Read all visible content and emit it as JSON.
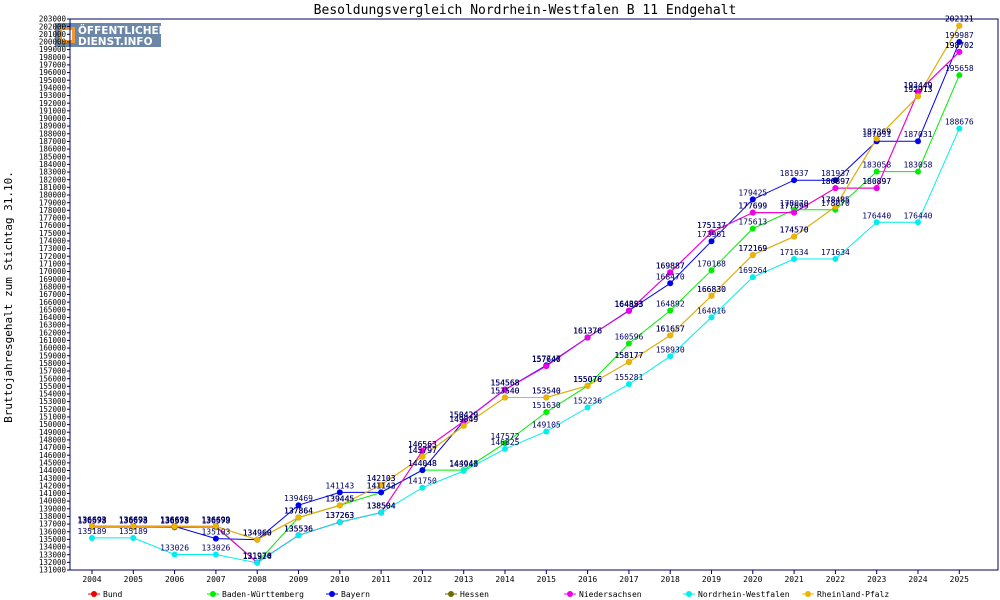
{
  "logo": {
    "line1": "ÖFFENTLICHER",
    "line2": "DIENST.INFO",
    "color": "#f29a2e"
  },
  "chart_data": {
    "type": "line",
    "title": "Besoldungsvergleich Nordrhein-Westfalen B 11 Endgehalt",
    "ylabel": "Bruttojahresgehalt zum Stichtag 31.10.",
    "xlabel": "",
    "ylim": [
      131000,
      203000
    ],
    "ytick_step": 1000,
    "grid": false,
    "legend_position": "bottom",
    "x": [
      "2004",
      "2005",
      "2006",
      "2007",
      "2008",
      "2009",
      "2010",
      "2011",
      "2012",
      "2013",
      "2014",
      "2015",
      "2016",
      "2017",
      "2018",
      "2019",
      "2020",
      "2021",
      "2022",
      "2023",
      "2024",
      "2025"
    ],
    "series": [
      {
        "name": "Bund",
        "color": "#ee0000",
        "values": [
          136693,
          136693,
          136693,
          136699,
          131970,
          135536,
          137263,
          138504,
          146563,
          150429,
          154568,
          157640,
          161376,
          164853,
          169887,
          175137,
          177699,
          177699,
          180897,
          180897,
          193449,
          198702
        ]
      },
      {
        "name": "Baden-Württemberg",
        "color": "#00ee00",
        "values": [
          136578,
          136578,
          136578,
          136578,
          131970,
          137864,
          139445,
          141142,
          144048,
          144048,
          147572,
          151630,
          155076,
          160596,
          164892,
          170168,
          175613,
          178070,
          178070,
          183058,
          183058,
          195658
        ]
      },
      {
        "name": "Bayern",
        "color": "#0000ee",
        "values": [
          136693,
          136693,
          136693,
          135103,
          134960,
          139469,
          141143,
          141143,
          144048,
          150429,
          154568,
          157747,
          161376,
          164893,
          168470,
          173961,
          179425,
          181937,
          181937,
          187031,
          187031,
          199987
        ]
      },
      {
        "name": "Hessen",
        "color": "#6b6b00",
        "values": [
          136693,
          136693,
          136578,
          136699,
          134960,
          137864,
          139445,
          142103,
          145797,
          149849,
          153540,
          153540,
          155076,
          158177,
          161657,
          166830,
          172169,
          174570,
          178485,
          187369,
          192913,
          202121
        ]
      },
      {
        "name": "Niedersachsen",
        "color": "#ee00ee",
        "values": [
          136693,
          136693,
          136693,
          136699,
          131970,
          135536,
          137263,
          138504,
          146563,
          150429,
          154568,
          157640,
          161376,
          164853,
          169887,
          175137,
          177699,
          177699,
          180897,
          180897,
          193449,
          198702
        ]
      },
      {
        "name": "Nordrhein-Westfalen",
        "color": "#00eeee",
        "values": [
          135189,
          135189,
          133026,
          133026,
          131924,
          135536,
          137263,
          138504,
          141750,
          143943,
          146825,
          149105,
          152236,
          155281,
          158930,
          164016,
          169264,
          171634,
          171634,
          176440,
          176440,
          188676
        ]
      },
      {
        "name": "Rheinland-Pfalz",
        "color": "#eeb400",
        "values": [
          136693,
          136693,
          136693,
          136699,
          134960,
          137864,
          139445,
          142103,
          145797,
          149849,
          153540,
          153540,
          155076,
          158177,
          161657,
          166830,
          172169,
          174570,
          178485,
          187369,
          192913,
          202121
        ]
      }
    ]
  }
}
